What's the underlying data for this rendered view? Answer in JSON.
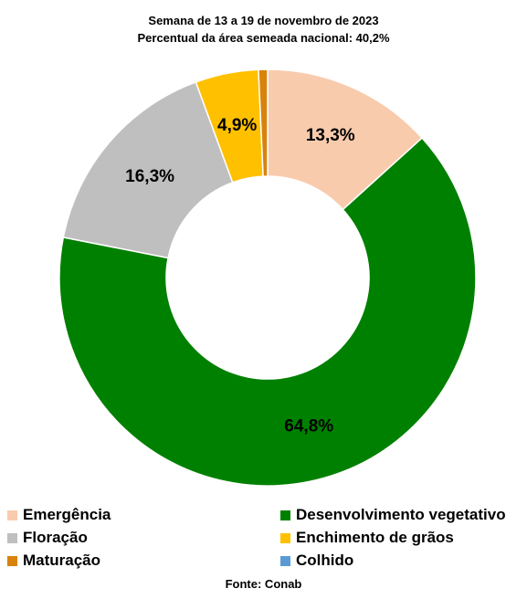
{
  "chart_data": {
    "type": "pie",
    "variant": "donut",
    "title": "Semana de 13 a 19 de novembro de 2023",
    "subtitle": "Percentual da área semeada nacional: 40,2%",
    "start": "top, clockwise",
    "slices": [
      {
        "name": "Emergência",
        "value": 13.3,
        "label": "13,3%",
        "color": "#f8cbad"
      },
      {
        "name": "Desenvolvimento vegetativo",
        "value": 64.8,
        "label": "64,8%",
        "color": "#008000"
      },
      {
        "name": "Floração",
        "value": 16.3,
        "label": "16,3%",
        "color": "#bfbfbf"
      },
      {
        "name": "Enchimento de grãos",
        "value": 4.9,
        "label": "4,9%",
        "color": "#ffc000"
      },
      {
        "name": "Maturação",
        "value": 0.7,
        "label": "",
        "color": "#d9820c"
      },
      {
        "name": "Colhido",
        "value": 0.0,
        "label": "",
        "color": "#5b9bd5"
      }
    ],
    "legend_position": "bottom"
  },
  "legend": [
    {
      "label": "Emergência",
      "color": "#f8cbad"
    },
    {
      "label": "Desenvolvimento vegetativo",
      "color": "#008000"
    },
    {
      "label": "Floração",
      "color": "#bfbfbf"
    },
    {
      "label": "Enchimento de grãos",
      "color": "#ffc000"
    },
    {
      "label": "Maturação",
      "color": "#d9820c"
    },
    {
      "label": "Colhido",
      "color": "#5b9bd5"
    }
  ],
  "source": "Fonte: Conab"
}
